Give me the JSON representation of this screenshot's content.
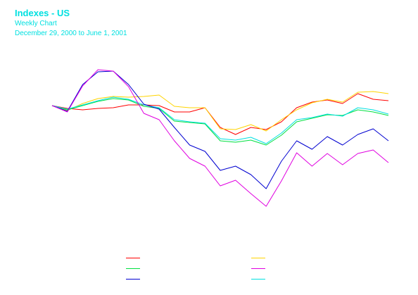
{
  "header": {
    "title": "Indexes - US",
    "subtitle": "Weekly Chart",
    "date_range": "December 29, 2000 to June 1, 2001"
  },
  "chart_data": {
    "type": "line",
    "title": "Indexes - US",
    "subtitle": "Weekly Chart",
    "xlabel": "",
    "ylabel": "",
    "grid": false,
    "legend": "bottom-center",
    "x_count": 23,
    "ylim": [
      -0.3,
      0.1
    ],
    "series": [
      {
        "color": "#ff0000",
        "values": [
          0,
          -0.008,
          -0.012,
          -0.008,
          -0.006,
          0.002,
          0.002,
          0.0,
          -0.018,
          -0.018,
          -0.006,
          -0.062,
          -0.082,
          -0.062,
          -0.068,
          -0.046,
          -0.006,
          0.01,
          0.016,
          0.006,
          0.034,
          0.018,
          0.014
        ]
      },
      {
        "color": "#ffd400",
        "values": [
          0,
          -0.014,
          0.006,
          0.02,
          0.026,
          0.024,
          0.026,
          0.03,
          -0.002,
          -0.006,
          -0.006,
          -0.066,
          -0.068,
          -0.054,
          -0.072,
          -0.04,
          -0.012,
          0.008,
          0.018,
          0.01,
          0.038,
          0.04,
          0.034
        ]
      },
      {
        "color": "#00e040",
        "values": [
          0,
          -0.012,
          0.0,
          0.012,
          0.02,
          0.016,
          -0.002,
          -0.008,
          -0.044,
          -0.048,
          -0.052,
          -0.1,
          -0.104,
          -0.098,
          -0.112,
          -0.084,
          -0.046,
          -0.036,
          -0.026,
          -0.028,
          -0.012,
          -0.018,
          -0.028
        ]
      },
      {
        "color": "#00e0e0",
        "values": [
          0,
          -0.01,
          0.002,
          0.014,
          0.024,
          0.018,
          0.002,
          -0.006,
          -0.04,
          -0.046,
          -0.05,
          -0.094,
          -0.098,
          -0.09,
          -0.108,
          -0.078,
          -0.04,
          -0.034,
          -0.024,
          -0.03,
          -0.006,
          -0.012,
          -0.024
        ]
      },
      {
        "color": "#0000d0",
        "values": [
          0,
          -0.016,
          0.06,
          0.096,
          0.098,
          0.06,
          0.004,
          -0.01,
          -0.062,
          -0.112,
          -0.13,
          -0.184,
          -0.172,
          -0.196,
          -0.236,
          -0.158,
          -0.1,
          -0.124,
          -0.088,
          -0.112,
          -0.082,
          -0.066,
          -0.1
        ]
      },
      {
        "color": "#e000e0",
        "values": [
          0,
          -0.018,
          0.056,
          0.102,
          0.098,
          0.054,
          -0.022,
          -0.04,
          -0.1,
          -0.15,
          -0.172,
          -0.228,
          -0.212,
          -0.25,
          -0.286,
          -0.214,
          -0.134,
          -0.172,
          -0.136,
          -0.168,
          -0.136,
          -0.126,
          -0.162
        ]
      }
    ],
    "legend_entries": [
      {
        "color": "#ff0000"
      },
      {
        "color": "#ffd400"
      },
      {
        "color": "#00e040"
      },
      {
        "color": "#e000e0"
      },
      {
        "color": "#0000d0"
      },
      {
        "color": "#00e0e0"
      }
    ]
  }
}
